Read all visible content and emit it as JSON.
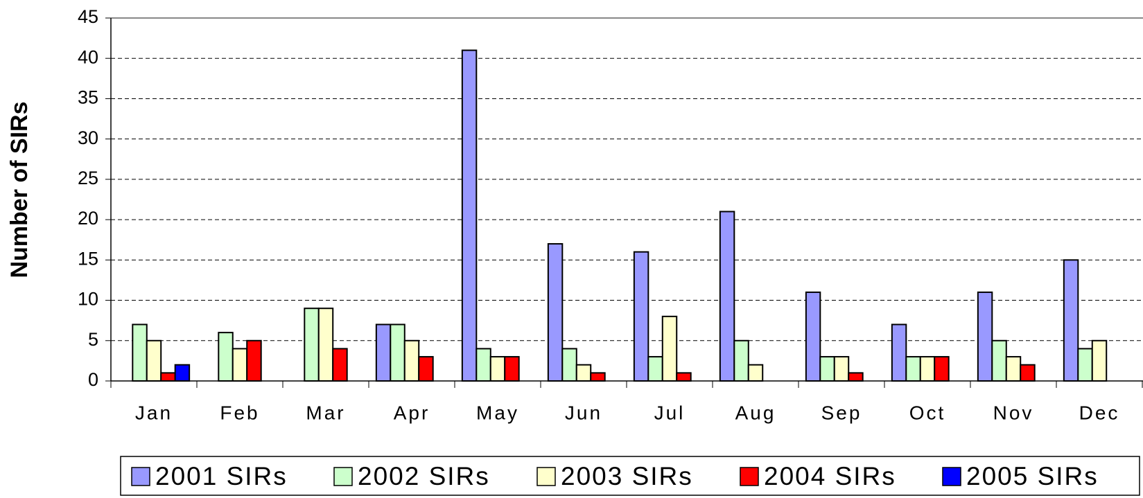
{
  "chart_data": {
    "type": "bar",
    "y_label": "Number of SIRs",
    "categories": [
      "Jan",
      "Feb",
      "Mar",
      "Apr",
      "May",
      "Jun",
      "Jul",
      "Aug",
      "Sep",
      "Oct",
      "Nov",
      "Dec"
    ],
    "series": [
      {
        "name": "2001 SIRs",
        "color": "#9999ff",
        "values": [
          0,
          0,
          0,
          7,
          41,
          17,
          16,
          21,
          11,
          7,
          11,
          15
        ]
      },
      {
        "name": "2002 SIRs",
        "color": "#ccffcc",
        "values": [
          7,
          6,
          9,
          7,
          4,
          4,
          3,
          5,
          3,
          3,
          5,
          4
        ]
      },
      {
        "name": "2003 SIRs",
        "color": "#ffffcc",
        "values": [
          5,
          4,
          9,
          5,
          3,
          2,
          8,
          2,
          3,
          3,
          3,
          5
        ]
      },
      {
        "name": "2004 SIRs",
        "color": "#ff0000",
        "values": [
          1,
          5,
          4,
          3,
          3,
          1,
          1,
          0,
          1,
          3,
          2,
          0
        ]
      },
      {
        "name": "2005 SIRs",
        "color": "#0000ff",
        "values": [
          2,
          0,
          0,
          0,
          0,
          0,
          0,
          0,
          0,
          0,
          0,
          0
        ]
      }
    ],
    "ylim": [
      0,
      45
    ],
    "yticks": [
      0,
      5,
      10,
      15,
      20,
      25,
      30,
      35,
      40,
      45
    ],
    "grid": true,
    "legend": "bottom"
  }
}
